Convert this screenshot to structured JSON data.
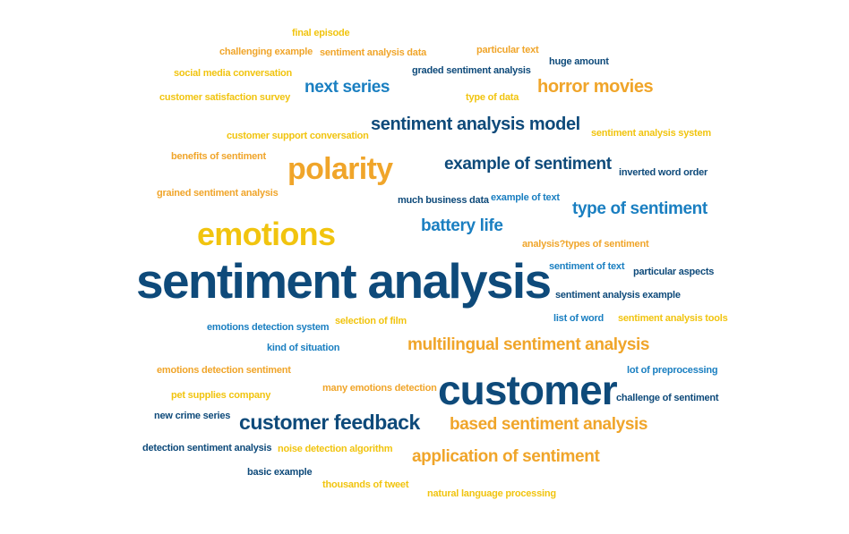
{
  "colors": {
    "navy": "#0e4a7a",
    "blue": "#1a7fc1",
    "orange": "#f0a52a",
    "gold": "#f1c40f"
  },
  "words": {
    "w01": "final episode",
    "w02": "challenging example",
    "w03": "sentiment analysis data",
    "w04": "particular text",
    "w05": "graded sentiment analysis",
    "w06": "huge amount",
    "w07": "social media conversation",
    "w08": "next series",
    "w09": "horror movies",
    "w10": "customer satisfaction survey",
    "w11": "type of data",
    "w12": "sentiment analysis model",
    "w13": "customer support conversation",
    "w14": "sentiment analysis system",
    "w15": "benefits of sentiment",
    "w16": "polarity",
    "w17": "example of sentiment",
    "w18": "inverted word order",
    "w19": "grained sentiment analysis",
    "w20": "much business data",
    "w21": "example of text",
    "w22": "type of sentiment",
    "w23": "battery life",
    "w24": "emotions",
    "w25": "analysis?types of sentiment",
    "w26": "sentiment of text",
    "w27": "particular aspects",
    "w28": "sentiment analysis",
    "w29": "sentiment analysis example",
    "w30": "list of word",
    "w31": "sentiment analysis tools",
    "w32": "emotions detection system",
    "w33": "selection of film",
    "w34": "multilingual sentiment analysis",
    "w35": "kind of situation",
    "w36": "emotions detection sentiment",
    "w37": "lot of preprocessing",
    "w38": "customer",
    "w39": "many emotions detection",
    "w40": "pet supplies company",
    "w41": "challenge of sentiment",
    "w42": "new crime series",
    "w43": "customer feedback",
    "w44": "based sentiment analysis",
    "w45": "detection sentiment analysis",
    "w46": "noise detection algorithm",
    "w47": "application of sentiment",
    "w48": "basic example",
    "w49": "thousands of tweet",
    "w50": "natural language processing"
  }
}
